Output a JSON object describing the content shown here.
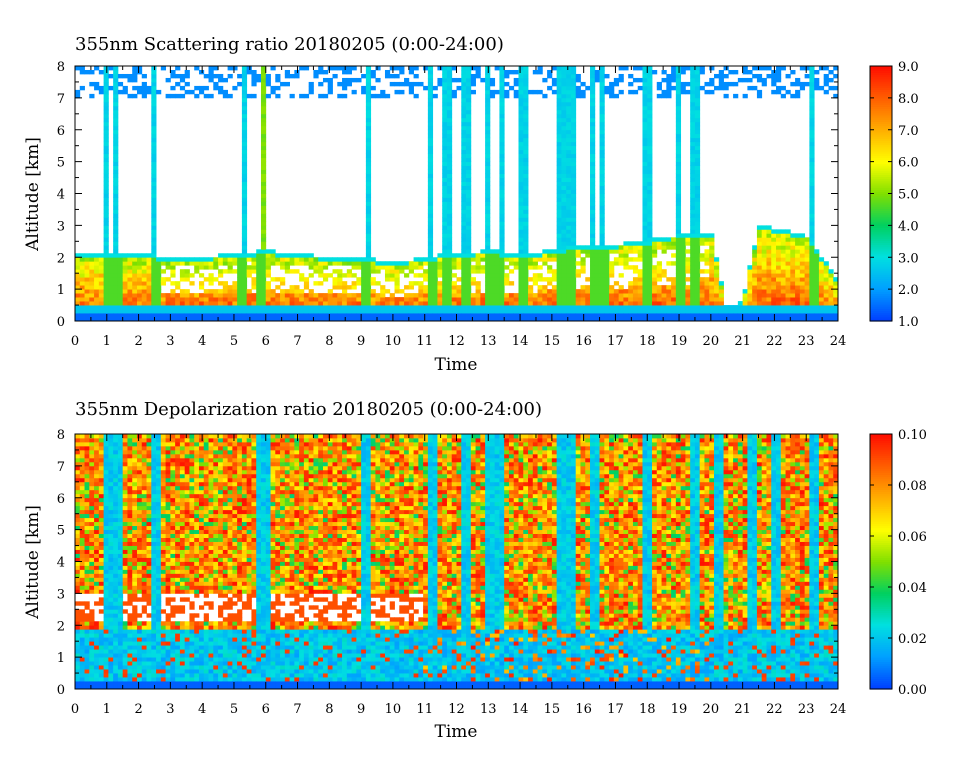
{
  "chart_data": [
    {
      "type": "heatmap",
      "title": "355nm Scattering ratio  20180205 (0:00-24:00)",
      "xlabel": "Time",
      "ylabel": "Altitude [km]",
      "xlim": [
        0,
        24
      ],
      "ylim": [
        0,
        8
      ],
      "x_ticks": [
        "0",
        "1",
        "2",
        "3",
        "4",
        "5",
        "6",
        "7",
        "8",
        "9",
        "10",
        "11",
        "12",
        "13",
        "14",
        "15",
        "16",
        "17",
        "18",
        "19",
        "20",
        "21",
        "22",
        "23",
        "24"
      ],
      "y_ticks": [
        "0",
        "1",
        "2",
        "3",
        "4",
        "5",
        "6",
        "7",
        "8"
      ],
      "colorbar": {
        "min": 1.0,
        "max": 9.0,
        "ticks": [
          "1.0",
          "2.0",
          "3.0",
          "4.0",
          "5.0",
          "6.0",
          "7.0",
          "8.0",
          "9.0"
        ],
        "colors": [
          "#0040ff",
          "#00a0ff",
          "#00e0e0",
          "#00d060",
          "#80e000",
          "#ffff00",
          "#ffb000",
          "#ff6000",
          "#ff1000"
        ]
      },
      "features": {
        "boundary_layer": [
          {
            "t": 0.0,
            "top": 2.0
          },
          {
            "t": 1.0,
            "top": 2.0
          },
          {
            "t": 2.0,
            "top": 2.0
          },
          {
            "t": 3.0,
            "top": 1.9
          },
          {
            "t": 4.0,
            "top": 1.9
          },
          {
            "t": 5.0,
            "top": 2.0
          },
          {
            "t": 6.0,
            "top": 2.1
          },
          {
            "t": 7.0,
            "top": 2.0
          },
          {
            "t": 8.0,
            "top": 1.9
          },
          {
            "t": 9.0,
            "top": 1.9
          },
          {
            "t": 10.0,
            "top": 1.7
          },
          {
            "t": 11.0,
            "top": 1.9
          },
          {
            "t": 12.0,
            "top": 2.0
          },
          {
            "t": 13.0,
            "top": 2.1
          },
          {
            "t": 14.0,
            "top": 2.0
          },
          {
            "t": 15.0,
            "top": 2.1
          },
          {
            "t": 16.0,
            "top": 2.3
          },
          {
            "t": 17.0,
            "top": 2.3
          },
          {
            "t": 18.0,
            "top": 2.4
          },
          {
            "t": 19.0,
            "top": 2.6
          },
          {
            "t": 20.0,
            "top": 2.7
          },
          {
            "t": 20.5,
            "top": 0.3
          },
          {
            "t": 21.0,
            "top": 0.5
          },
          {
            "t": 21.5,
            "top": 2.9
          },
          {
            "t": 22.0,
            "top": 2.8
          },
          {
            "t": 23.0,
            "top": 2.6
          },
          {
            "t": 24.0,
            "top": 1.2
          }
        ],
        "cloud_columns_hours": [
          1.0,
          1.3,
          2.5,
          5.3,
          5.9,
          9.2,
          11.2,
          11.7,
          12.3,
          13.0,
          13.4,
          14.1,
          15.3,
          15.6,
          16.3,
          16.6,
          18.0,
          19.0,
          19.5,
          23.2
        ]
      }
    },
    {
      "type": "heatmap",
      "title": "355nm Depolarization ratio  20180205 (0:00-24:00)",
      "xlabel": "Time",
      "ylabel": "Altitude [km]",
      "xlim": [
        0,
        24
      ],
      "ylim": [
        0,
        8
      ],
      "x_ticks": [
        "0",
        "1",
        "2",
        "3",
        "4",
        "5",
        "6",
        "7",
        "8",
        "9",
        "10",
        "11",
        "12",
        "13",
        "14",
        "15",
        "16",
        "17",
        "18",
        "19",
        "20",
        "21",
        "22",
        "23",
        "24"
      ],
      "y_ticks": [
        "0",
        "1",
        "2",
        "3",
        "4",
        "5",
        "6",
        "7",
        "8"
      ],
      "colorbar": {
        "min": 0.0,
        "max": 0.1,
        "ticks": [
          "0.00",
          "0.02",
          "0.04",
          "0.06",
          "0.08",
          "0.10"
        ],
        "colors": [
          "#0040ff",
          "#00a0ff",
          "#00e0e0",
          "#00d060",
          "#80e000",
          "#ffff00",
          "#ffb000",
          "#ff6000",
          "#ff1000"
        ]
      },
      "features": {
        "boundary_layer_top_km": 1.9,
        "cloud_columns_hours": [
          1.0,
          1.3,
          2.5,
          5.8,
          6.0,
          9.2,
          11.2,
          12.3,
          13.0,
          13.4,
          15.3,
          15.6,
          16.3,
          18.0,
          19.5,
          20.3,
          21.3,
          22.1,
          23.2
        ]
      }
    }
  ]
}
